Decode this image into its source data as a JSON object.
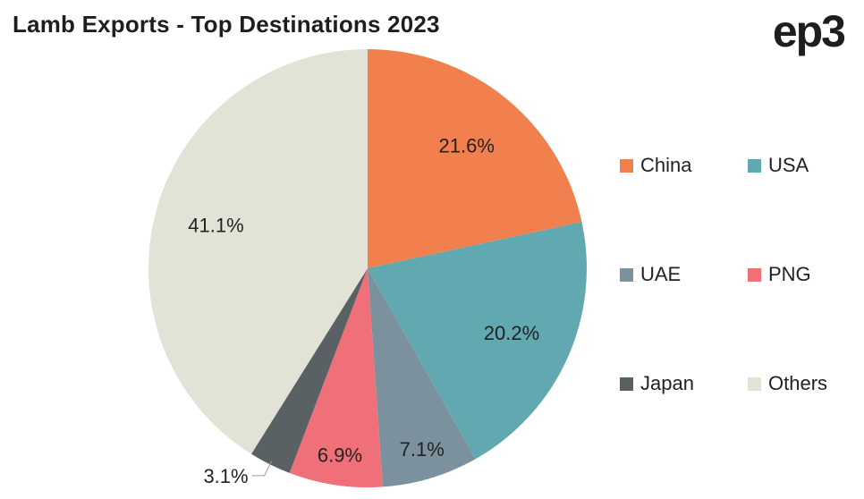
{
  "title": "Lamb Exports - Top Destinations 2023",
  "logo": "ep3",
  "chart_data": {
    "type": "pie",
    "title": "Lamb Exports - Top Destinations 2023",
    "slices": [
      {
        "name": "China",
        "value": 21.6,
        "label": "21.6%",
        "color": "#f2804e"
      },
      {
        "name": "USA",
        "value": 20.2,
        "label": "20.2%",
        "color": "#61a8b1"
      },
      {
        "name": "UAE",
        "value": 7.1,
        "label": "7.1%",
        "color": "#7b919d"
      },
      {
        "name": "PNG",
        "value": 6.9,
        "label": "6.9%",
        "color": "#f07079"
      },
      {
        "name": "Japan",
        "value": 3.1,
        "label": "3.1%",
        "color": "#5a6164"
      },
      {
        "name": "Others",
        "value": 41.1,
        "label": "41.1%",
        "color": "#e3e2d7"
      }
    ],
    "start_angle": "12 o'clock",
    "direction": "clockwise",
    "legend_position": "right"
  }
}
